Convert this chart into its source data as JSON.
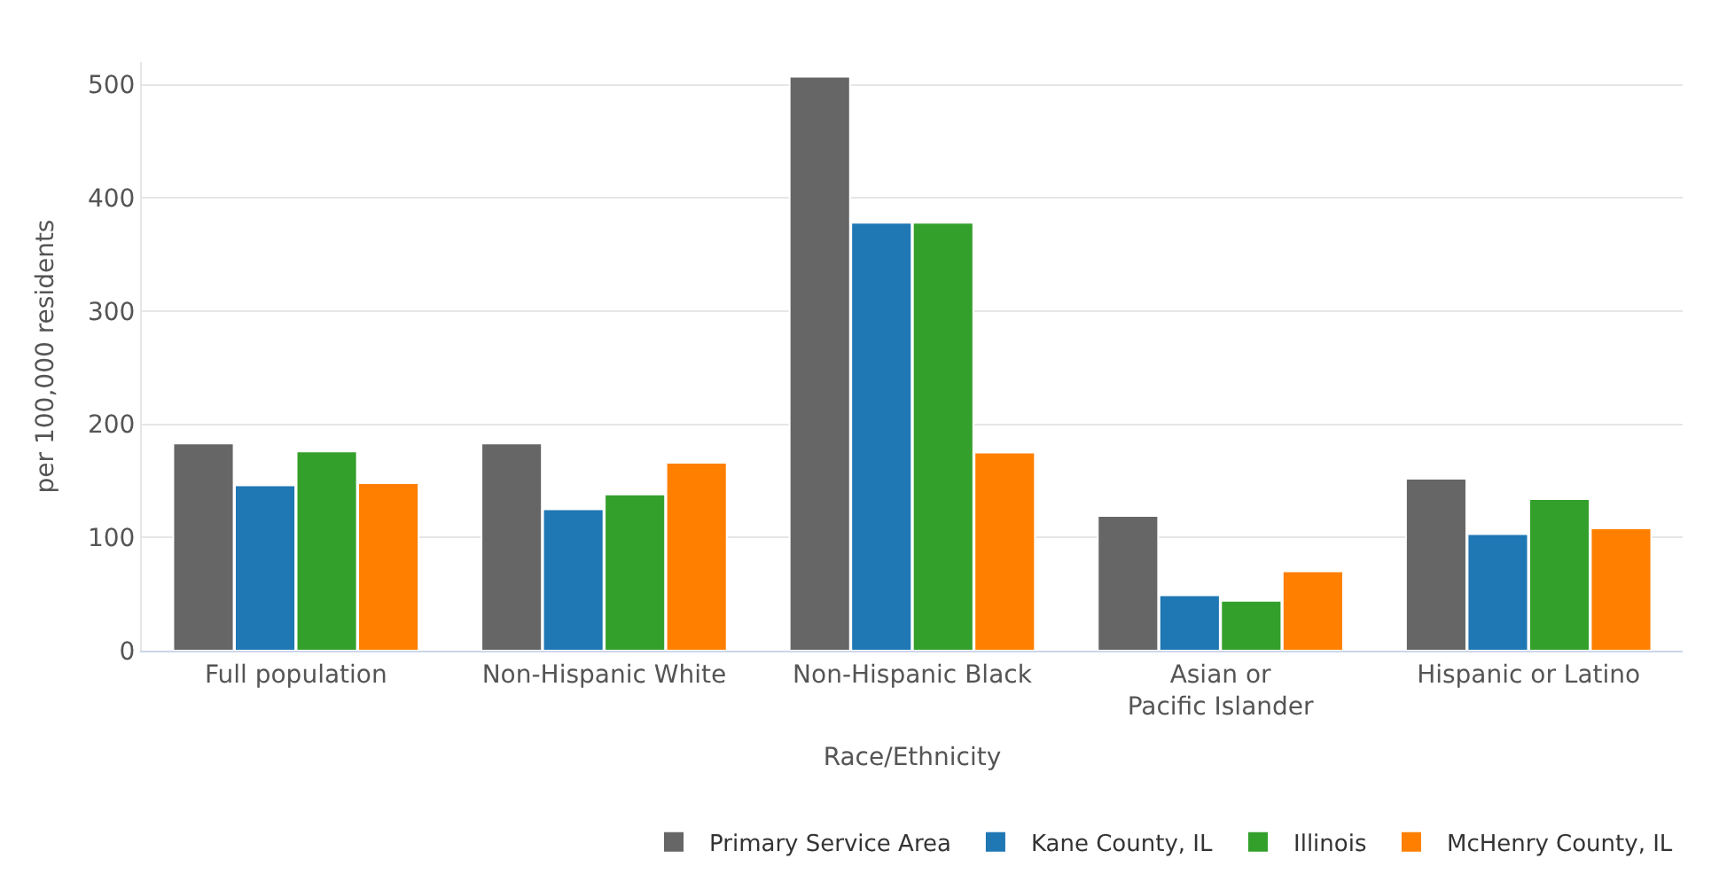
{
  "chart_data": {
    "type": "bar",
    "categories": [
      "Full population",
      "Non-Hispanic White",
      "Non-Hispanic Black",
      "Asian or Pacific Islander",
      "Hispanic or Latino"
    ],
    "xlabel": "Race/Ethnicity",
    "ylabel": "per 100,000 residents",
    "series": [
      {
        "name": "Primary Service Area",
        "color": "#666666",
        "values": [
          183,
          183,
          507,
          119,
          152
        ]
      },
      {
        "name": "Kane County, IL",
        "color": "#1f77b4",
        "values": [
          146,
          125,
          378,
          49,
          103
        ]
      },
      {
        "name": "Illinois",
        "color": "#33a02c",
        "values": [
          176,
          138,
          378,
          44,
          134
        ]
      },
      {
        "name": "McHenry County, IL",
        "color": "#ff7f00",
        "values": [
          148,
          166,
          175,
          70,
          108
        ]
      }
    ],
    "ylim": [
      0,
      520
    ],
    "yticks": [
      0,
      100,
      200,
      300,
      400,
      500
    ],
    "grid": "y",
    "legend": "bottom"
  }
}
